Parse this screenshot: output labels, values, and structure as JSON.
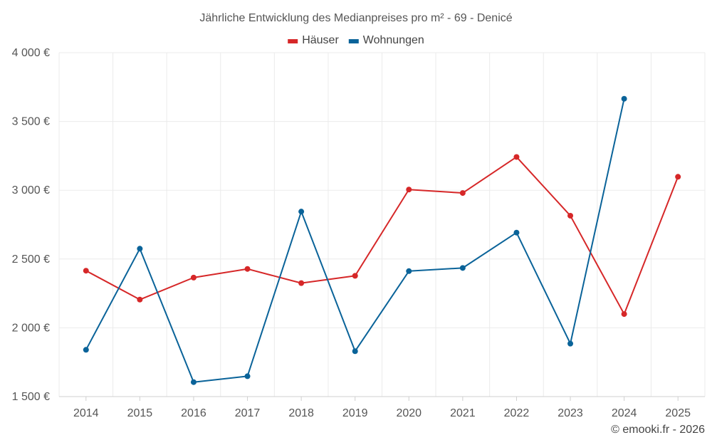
{
  "chart_data": {
    "type": "line",
    "title": "Jährliche Entwicklung des Medianpreises pro m² - 69 - Denicé",
    "categories": [
      "2014",
      "2015",
      "2016",
      "2017",
      "2018",
      "2019",
      "2020",
      "2021",
      "2022",
      "2023",
      "2024",
      "2025"
    ],
    "series": [
      {
        "name": "Häuser",
        "color": "#d62728",
        "values": [
          2415,
          2205,
          2365,
          2428,
          2325,
          2378,
          3005,
          2980,
          3242,
          2815,
          2100,
          3098
        ]
      },
      {
        "name": "Wohnungen",
        "color": "#0a6399",
        "values": [
          1840,
          2575,
          1605,
          1648,
          2845,
          1830,
          2412,
          2435,
          2692,
          1885,
          3665,
          null
        ]
      }
    ],
    "ylim": [
      1500,
      4000
    ],
    "yticks": [
      1500,
      2000,
      2500,
      3000,
      3500,
      4000
    ],
    "ytick_labels": [
      "1 500 €",
      "2 000 €",
      "2 500 €",
      "3 000 €",
      "3 500 €",
      "4 000 €"
    ],
    "xlabel": "",
    "ylabel": "",
    "grid": true,
    "legend_position": "top-center",
    "credit": "© emooki.fr - 2026"
  }
}
